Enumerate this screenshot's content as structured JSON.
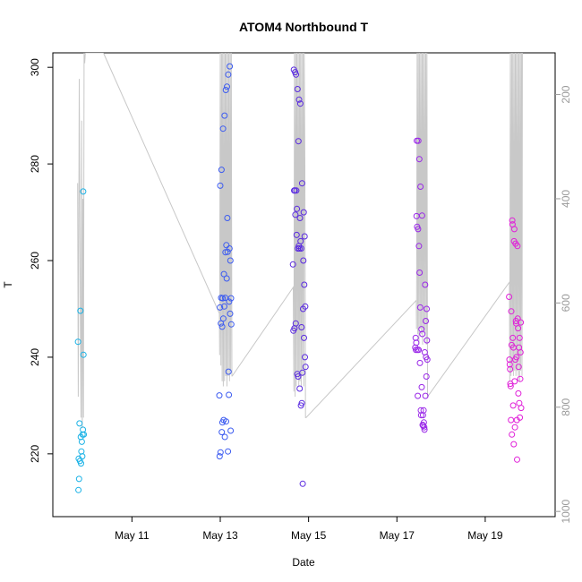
{
  "chart_data": {
    "type": "scatter",
    "title": "ATOM4 Northbound T",
    "xlabel": "Date",
    "ylabel": "T",
    "xlim": [
      "2016-05-09T05:00",
      "2016-05-20T14:00"
    ],
    "ylim": [
      207,
      303
    ],
    "y_ticks": [
      220,
      240,
      260,
      280,
      300
    ],
    "x_ticks": [
      {
        "date": "2016-05-11",
        "label": "May 11"
      },
      {
        "date": "2016-05-13",
        "label": "May 13"
      },
      {
        "date": "2016-05-15",
        "label": "May 15"
      },
      {
        "date": "2016-05-17",
        "label": "May 17"
      },
      {
        "date": "2016-05-19",
        "label": "May 19"
      }
    ],
    "right_axis": {
      "ticks": [
        200,
        400,
        600,
        800,
        1000
      ],
      "range": [
        120,
        1010
      ],
      "inverted": true,
      "color": "#c8c8c8"
    },
    "grid": false,
    "legend": "none",
    "colors": {
      "cyan": "#1ab2e6",
      "blue": "#3d5cf0",
      "violet": "#5a2ae0",
      "purple": "#9a28e8",
      "magenta": "#e020d8",
      "line": "#c8c8c8"
    },
    "series": [
      {
        "color": "#1ab2e6",
        "x": [
          "2016-05-09T18:40",
          "2016-05-09T18:55",
          "2016-05-09T19:05",
          "2016-05-09T19:15",
          "2016-05-09T19:30",
          "2016-05-09T19:45",
          "2016-05-09T20:00",
          "2016-05-09T20:10",
          "2016-05-09T20:20",
          "2016-05-09T20:30",
          "2016-05-09T20:45",
          "2016-05-09T21:00",
          "2016-05-09T21:10",
          "2016-05-09T21:20",
          "2016-05-09T21:30",
          "2016-05-09T21:40",
          "2016-05-09T21:50"
        ],
        "y": [
          243.2,
          212.5,
          219.0,
          214.8,
          226.3,
          218.5,
          249.6,
          223.5,
          218.0,
          220.5,
          222.5,
          219.5,
          224.0,
          225.0,
          274.3,
          240.5,
          224.0
        ]
      },
      {
        "color": "#3d5cf0",
        "x": [
          "2016-05-12T23:30",
          "2016-05-12T23:40",
          "2016-05-12T23:50",
          "2016-05-13T00:00",
          "2016-05-13T00:10",
          "2016-05-13T00:20",
          "2016-05-13T00:30",
          "2016-05-13T00:40",
          "2016-05-13T00:50",
          "2016-05-13T01:00",
          "2016-05-13T01:10",
          "2016-05-13T01:20",
          "2016-05-13T01:30",
          "2016-05-13T01:40",
          "2016-05-13T01:50",
          "2016-05-13T02:00",
          "2016-05-13T02:10",
          "2016-05-13T02:20",
          "2016-05-13T02:30",
          "2016-05-13T02:40",
          "2016-05-13T02:50",
          "2016-05-13T03:00",
          "2016-05-13T03:10",
          "2016-05-13T03:20",
          "2016-05-13T03:30",
          "2016-05-13T03:40",
          "2016-05-13T03:50",
          "2016-05-13T04:00",
          "2016-05-13T04:10",
          "2016-05-13T04:20",
          "2016-05-13T04:30",
          "2016-05-13T04:40",
          "2016-05-13T04:50",
          "2016-05-13T05:00",
          "2016-05-13T05:10",
          "2016-05-13T05:20",
          "2016-05-13T05:30",
          "2016-05-13T05:40",
          "2016-05-13T05:50",
          "2016-05-13T06:00"
        ],
        "y": [
          232.1,
          219.5,
          250.3,
          275.5,
          220.3,
          247.0,
          252.3,
          278.8,
          224.5,
          246.3,
          226.5,
          252.2,
          287.3,
          248.0,
          227.0,
          257.2,
          250.5,
          290.0,
          223.5,
          252.3,
          261.7,
          295.3,
          226.7,
          263.2,
          256.3,
          296.0,
          268.8,
          261.8,
          220.5,
          298.5,
          237.0,
          232.2,
          251.5,
          262.5,
          300.2,
          249.0,
          260.0,
          224.8,
          252.2,
          246.8
        ]
      },
      {
        "color": "#5a2ae0",
        "x": [
          "2016-05-14T15:30",
          "2016-05-14T15:45",
          "2016-05-14T16:00",
          "2016-05-14T16:10",
          "2016-05-14T16:20",
          "2016-05-14T16:30",
          "2016-05-14T16:40",
          "2016-05-14T16:50",
          "2016-05-14T17:00",
          "2016-05-14T17:10",
          "2016-05-14T17:20",
          "2016-05-14T17:30",
          "2016-05-14T17:40",
          "2016-05-14T17:50",
          "2016-05-14T18:00",
          "2016-05-14T18:10",
          "2016-05-14T18:20",
          "2016-05-14T18:30",
          "2016-05-14T18:40",
          "2016-05-14T18:50",
          "2016-05-14T19:00",
          "2016-05-14T19:10",
          "2016-05-14T19:20",
          "2016-05-14T19:30",
          "2016-05-14T19:40",
          "2016-05-14T19:50",
          "2016-05-14T20:00",
          "2016-05-14T20:10",
          "2016-05-14T20:20",
          "2016-05-14T20:30",
          "2016-05-14T20:40",
          "2016-05-14T20:50",
          "2016-05-14T21:00",
          "2016-05-14T21:10",
          "2016-05-14T21:20",
          "2016-05-14T21:30",
          "2016-05-14T21:40",
          "2016-05-14T21:50",
          "2016-05-14T22:00",
          "2016-05-14T22:10",
          "2016-05-14T22:20"
        ],
        "y": [
          259.2,
          245.5,
          299.5,
          274.5,
          246.0,
          274.5,
          299.0,
          269.5,
          247.0,
          298.5,
          274.5,
          265.3,
          270.7,
          236.5,
          295.5,
          262.5,
          236.0,
          284.7,
          263.0,
          293.3,
          262.5,
          233.5,
          268.8,
          292.5,
          264.0,
          230.0,
          262.5,
          246.2,
          230.5,
          276.0,
          236.8,
          213.8,
          250.0,
          260.0,
          270.0,
          244.0,
          255.0,
          265.0,
          240.0,
          250.5,
          238.0
        ]
      },
      {
        "color": "#9a28e8",
        "x": [
          "2016-05-17T10:00",
          "2016-05-17T10:10",
          "2016-05-17T10:20",
          "2016-05-17T10:30",
          "2016-05-17T10:40",
          "2016-05-17T10:50",
          "2016-05-17T11:00",
          "2016-05-17T11:10",
          "2016-05-17T11:20",
          "2016-05-17T11:30",
          "2016-05-17T11:40",
          "2016-05-17T11:50",
          "2016-05-17T12:00",
          "2016-05-17T12:10",
          "2016-05-17T12:20",
          "2016-05-17T12:30",
          "2016-05-17T12:40",
          "2016-05-17T12:50",
          "2016-05-17T13:00",
          "2016-05-17T13:10",
          "2016-05-17T13:20",
          "2016-05-17T13:30",
          "2016-05-17T13:40",
          "2016-05-17T13:50",
          "2016-05-17T14:00",
          "2016-05-17T14:10",
          "2016-05-17T14:20",
          "2016-05-17T14:30",
          "2016-05-17T14:40",
          "2016-05-17T14:50",
          "2016-05-17T15:00",
          "2016-05-17T15:10",
          "2016-05-17T15:20",
          "2016-05-17T15:30",
          "2016-05-17T15:40",
          "2016-05-17T15:50",
          "2016-05-17T16:00",
          "2016-05-17T16:10",
          "2016-05-17T16:20",
          "2016-05-17T16:30"
        ],
        "y": [
          242.0,
          244.0,
          241.5,
          243.0,
          269.2,
          284.8,
          267.0,
          241.5,
          232.0,
          266.5,
          284.8,
          241.5,
          263.0,
          281.0,
          257.5,
          238.8,
          250.3,
          275.3,
          229.0,
          228.0,
          245.8,
          233.8,
          269.3,
          244.8,
          226.0,
          228.0,
          225.8,
          229.0,
          226.5,
          225.5,
          225.0,
          241.0,
          255.0,
          232.0,
          247.5,
          240.0,
          236.0,
          250.0,
          243.5,
          239.5
        ]
      },
      {
        "color": "#e020d8",
        "x": [
          "2016-05-19T13:00",
          "2016-05-19T13:10",
          "2016-05-19T13:20",
          "2016-05-19T13:30",
          "2016-05-19T13:40",
          "2016-05-19T13:50",
          "2016-05-19T14:00",
          "2016-05-19T14:10",
          "2016-05-19T14:20",
          "2016-05-19T14:30",
          "2016-05-19T14:40",
          "2016-05-19T14:50",
          "2016-05-19T15:00",
          "2016-05-19T15:10",
          "2016-05-19T15:20",
          "2016-05-19T15:30",
          "2016-05-19T15:40",
          "2016-05-19T15:50",
          "2016-05-19T16:00",
          "2016-05-19T16:10",
          "2016-05-19T16:20",
          "2016-05-19T16:30",
          "2016-05-19T16:40",
          "2016-05-19T16:50",
          "2016-05-19T17:00",
          "2016-05-19T17:10",
          "2016-05-19T17:20",
          "2016-05-19T17:30",
          "2016-05-19T17:40",
          "2016-05-19T17:50",
          "2016-05-19T18:00",
          "2016-05-19T18:10",
          "2016-05-19T18:20",
          "2016-05-19T18:30",
          "2016-05-19T18:40",
          "2016-05-19T18:50",
          "2016-05-19T19:00",
          "2016-05-19T19:10",
          "2016-05-19T19:20",
          "2016-05-19T19:30"
        ],
        "y": [
          252.5,
          239.5,
          238.5,
          237.5,
          234.5,
          234.0,
          227.0,
          249.5,
          242.5,
          224.0,
          268.3,
          267.5,
          244.0,
          230.0,
          242.0,
          222.0,
          264.0,
          266.5,
          235.0,
          225.5,
          239.5,
          263.5,
          247.5,
          247.0,
          240.0,
          227.0,
          218.8,
          263.0,
          248.0,
          246.0,
          232.5,
          238.0,
          242.0,
          230.5,
          244.0,
          227.5,
          235.5,
          241.0,
          247.2,
          229.5
        ]
      }
    ],
    "depth_trace": {
      "color": "#c8c8c8",
      "x": [
        "2016-05-09T18:30",
        "2016-05-09T18:50",
        "2016-05-09T19:20",
        "2016-05-09T20:00",
        "2016-05-09T20:20",
        "2016-05-09T20:40",
        "2016-05-09T21:00",
        "2016-05-09T21:20",
        "2016-05-09T21:40",
        "2016-05-09T22:00",
        "2016-05-09T22:20",
        "2016-05-09T22:40",
        "2016-05-10T08:30",
        "2016-05-12T23:30",
        "2016-05-12T23:40",
        "2016-05-13T00:00",
        "2016-05-13T00:20",
        "2016-05-13T00:40",
        "2016-05-13T01:00",
        "2016-05-13T01:20",
        "2016-05-13T01:40",
        "2016-05-13T02:00",
        "2016-05-13T02:20",
        "2016-05-13T02:40",
        "2016-05-13T03:00",
        "2016-05-13T03:20",
        "2016-05-13T03:40",
        "2016-05-13T04:00",
        "2016-05-13T04:20",
        "2016-05-13T04:40",
        "2016-05-13T05:00",
        "2016-05-13T05:20",
        "2016-05-13T05:40",
        "2016-05-13T06:00",
        "2016-05-13T06:20",
        "2016-05-13T06:30",
        "2016-05-14T15:40",
        "2016-05-14T16:00",
        "2016-05-14T16:20",
        "2016-05-14T16:40",
        "2016-05-14T17:00",
        "2016-05-14T17:20",
        "2016-05-14T17:40",
        "2016-05-14T18:00",
        "2016-05-14T18:20",
        "2016-05-14T18:40",
        "2016-05-14T19:00",
        "2016-05-14T19:20",
        "2016-05-14T19:40",
        "2016-05-14T20:00",
        "2016-05-14T20:20",
        "2016-05-14T20:40",
        "2016-05-14T21:00",
        "2016-05-14T21:20",
        "2016-05-14T21:40",
        "2016-05-14T22:00",
        "2016-05-14T22:20",
        "2016-05-14T22:40",
        "2016-05-17T10:30",
        "2016-05-17T10:40",
        "2016-05-17T11:00",
        "2016-05-17T11:20",
        "2016-05-17T11:40",
        "2016-05-17T12:00",
        "2016-05-17T12:20",
        "2016-05-17T12:40",
        "2016-05-17T13:00",
        "2016-05-17T13:20",
        "2016-05-17T13:40",
        "2016-05-17T14:00",
        "2016-05-17T14:20",
        "2016-05-17T14:40",
        "2016-05-17T15:00",
        "2016-05-17T15:20",
        "2016-05-17T15:40",
        "2016-05-17T16:00",
        "2016-05-17T16:20",
        "2016-05-17T16:40",
        "2016-05-19T13:10",
        "2016-05-19T13:20",
        "2016-05-19T13:40",
        "2016-05-19T14:00",
        "2016-05-19T14:20",
        "2016-05-19T14:40",
        "2016-05-19T15:00",
        "2016-05-19T15:20",
        "2016-05-19T15:40",
        "2016-05-19T16:00",
        "2016-05-19T16:20",
        "2016-05-19T16:40",
        "2016-05-19T17:00",
        "2016-05-19T17:20",
        "2016-05-19T17:40",
        "2016-05-19T18:00",
        "2016-05-19T18:20",
        "2016-05-19T18:40",
        "2016-05-19T19:00",
        "2016-05-19T19:20",
        "2016-05-19T19:40",
        "2016-05-19T20:00",
        "2016-05-19T20:10"
      ],
      "depth": [
        370,
        780,
        170,
        650,
        820,
        250,
        840,
        400,
        820,
        120,
        140,
        120,
        120,
        620,
        700,
        120,
        720,
        120,
        750,
        120,
        760,
        120,
        750,
        120,
        740,
        120,
        760,
        120,
        740,
        120,
        750,
        120,
        730,
        120,
        740,
        740,
        570,
        770,
        120,
        780,
        120,
        760,
        120,
        740,
        120,
        760,
        120,
        750,
        120,
        760,
        120,
        740,
        120,
        760,
        120,
        340,
        820,
        820,
        595,
        650,
        120,
        660,
        120,
        680,
        120,
        650,
        120,
        660,
        120,
        680,
        120,
        650,
        120,
        660,
        120,
        680,
        120,
        780,
        560,
        750,
        120,
        740,
        120,
        730,
        120,
        740,
        120,
        730,
        120,
        740,
        120,
        730,
        120,
        740,
        120,
        750,
        120,
        730,
        120,
        740,
        120
      ]
    }
  }
}
